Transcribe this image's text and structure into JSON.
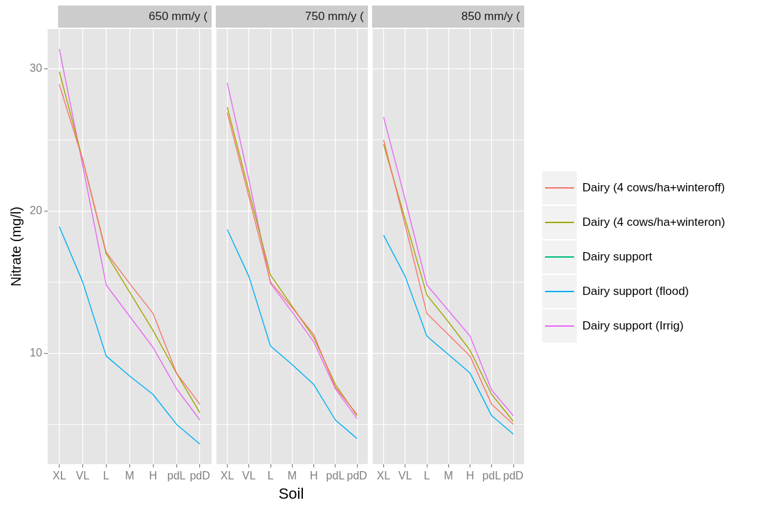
{
  "chart_data": [
    {
      "type": "line",
      "title": "650 mm/y (",
      "ylabel": "Nitrate (mg/l)",
      "categories": [
        "XL",
        "VL",
        "L",
        "M",
        "H",
        "pdL",
        "pdD"
      ],
      "ylim": [
        2.2,
        32.8
      ],
      "yticks": [
        {
          "value": 5,
          "label": null
        },
        10,
        {
          "value": 15,
          "label": null
        },
        20,
        {
          "value": 25,
          "label": null
        },
        30
      ],
      "grid": true,
      "marker": "none",
      "series": [
        {
          "color": "#f8766d",
          "values": [
            28.9,
            23.6,
            17.1,
            14.9,
            12.8,
            8.6,
            6.4
          ]
        },
        {
          "color": "#a3a500",
          "values": [
            29.8,
            23.6,
            17.0,
            14.3,
            11.6,
            8.6,
            5.8
          ]
        },
        {
          "color": "#00bf7d",
          "values": [
            null,
            null,
            null,
            null,
            null,
            null,
            null
          ]
        },
        {
          "color": "#00b0f6",
          "values": [
            18.9,
            15.0,
            9.8,
            8.4,
            7.1,
            5.0,
            3.6
          ]
        },
        {
          "color": "#e76bf3",
          "values": [
            31.4,
            23.2,
            14.8,
            12.6,
            10.4,
            7.5,
            5.3
          ]
        }
      ]
    },
    {
      "type": "line",
      "title": "750 mm/y (",
      "xlabel": "Soil",
      "categories": [
        "XL",
        "VL",
        "L",
        "M",
        "H",
        "pdL",
        "pdD"
      ],
      "ylim": [
        2.2,
        32.8
      ],
      "yticks": [
        {
          "value": 5,
          "label": null
        },
        10,
        {
          "value": 15,
          "label": null
        },
        20,
        {
          "value": 25,
          "label": null
        },
        30
      ],
      "tick_labels": "x",
      "grid": true,
      "marker": "none",
      "series": [
        {
          "color": "#f8766d",
          "values": [
            26.9,
            21.0,
            15.0,
            13.2,
            11.3,
            7.6,
            5.7
          ]
        },
        {
          "color": "#a3a500",
          "values": [
            27.3,
            21.4,
            15.5,
            13.3,
            11.1,
            7.8,
            5.6
          ]
        },
        {
          "color": "#00bf7d",
          "values": [
            null,
            null,
            null,
            null,
            null,
            null,
            null
          ]
        },
        {
          "color": "#00b0f6",
          "values": [
            18.7,
            15.4,
            10.5,
            9.2,
            7.8,
            5.3,
            4.0
          ]
        },
        {
          "color": "#e76bf3",
          "values": [
            29.0,
            22.2,
            14.9,
            12.9,
            10.8,
            7.5,
            5.4
          ]
        }
      ]
    },
    {
      "type": "line",
      "title": "850 mm/y (",
      "categories": [
        "XL",
        "VL",
        "L",
        "M",
        "H",
        "pdL",
        "pdD"
      ],
      "ylim": [
        2.2,
        32.8
      ],
      "yticks": [
        {
          "value": 5,
          "label": null
        },
        10,
        {
          "value": 15,
          "label": null
        },
        20,
        {
          "value": 25,
          "label": null
        },
        30
      ],
      "tick_labels": "x",
      "grid": true,
      "marker": "none",
      "legend": "right",
      "series": [
        {
          "name": "Dairy (4 cows/ha+winteroff)",
          "color": "#f8766d",
          "values": [
            25.0,
            19.0,
            12.8,
            11.3,
            9.8,
            6.4,
            5.0
          ]
        },
        {
          "name": "Dairy (4 cows/ha+winteron)",
          "color": "#a3a500",
          "values": [
            24.7,
            19.4,
            14.1,
            12.2,
            10.2,
            7.1,
            5.2
          ]
        },
        {
          "name": "Dairy support",
          "color": "#00bf7d",
          "values": [
            null,
            null,
            null,
            null,
            null,
            null,
            null
          ]
        },
        {
          "name": "Dairy support (flood)",
          "color": "#00b0f6",
          "values": [
            18.3,
            15.4,
            11.2,
            9.9,
            8.6,
            5.6,
            4.3
          ]
        },
        {
          "name": "Dairy support (Irrig)",
          "color": "#e76bf3",
          "values": [
            26.6,
            20.8,
            14.8,
            13.0,
            11.2,
            7.4,
            5.6
          ]
        }
      ]
    }
  ]
}
